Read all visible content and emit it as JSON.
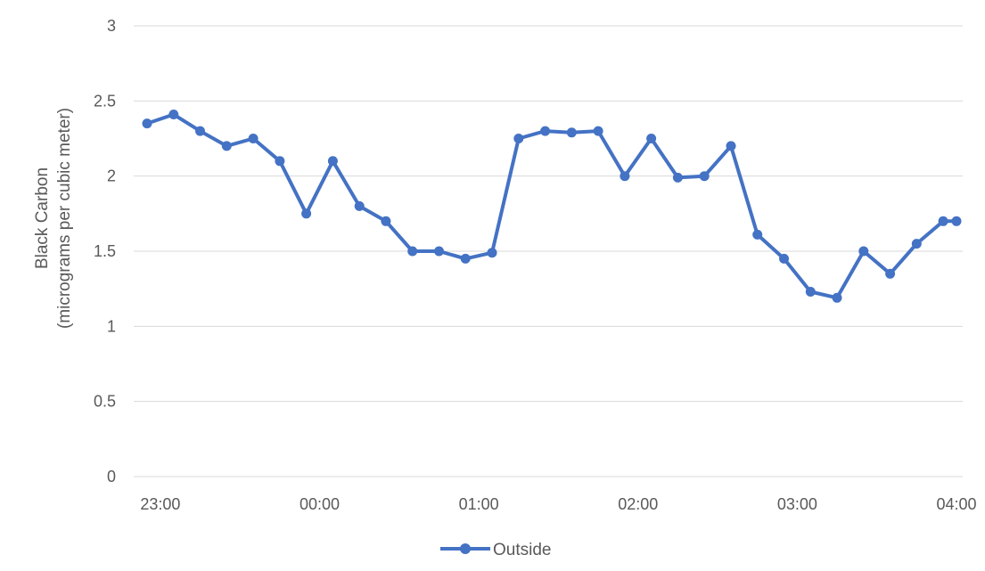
{
  "chart_data": {
    "type": "line",
    "ylabel_lines": [
      "Black Carbon",
      "(micrograms per cubic meter)"
    ],
    "xlabel": "",
    "ylim": [
      0,
      3
    ],
    "y_ticks": [
      "0",
      "0.5",
      "1",
      "1.5",
      "2",
      "2.5",
      "3"
    ],
    "x_range": [
      "22:55",
      "04:00"
    ],
    "x_ticks": [
      "23:00",
      "00:00",
      "01:00",
      "02:00",
      "03:00",
      "04:00"
    ],
    "grid": "horizontal",
    "legend": "bottom",
    "series": [
      {
        "name": "Outside",
        "color": "#4472c4",
        "x": [
          "22:55",
          "23:05",
          "23:15",
          "23:25",
          "23:35",
          "23:45",
          "23:55",
          "00:05",
          "00:15",
          "00:25",
          "00:35",
          "00:45",
          "00:55",
          "01:05",
          "01:15",
          "01:25",
          "01:35",
          "01:45",
          "01:55",
          "02:05",
          "02:15",
          "02:25",
          "02:35",
          "02:45",
          "02:55",
          "03:05",
          "03:15",
          "03:25",
          "03:35",
          "03:45",
          "03:55",
          "04:00"
        ],
        "y": [
          2.35,
          2.41,
          2.3,
          2.2,
          2.25,
          2.1,
          1.75,
          2.1,
          1.8,
          1.7,
          1.5,
          1.5,
          1.45,
          1.49,
          2.25,
          2.3,
          2.29,
          2.3,
          2.0,
          2.25,
          1.99,
          2.0,
          2.2,
          1.61,
          1.45,
          1.23,
          1.19,
          1.5,
          1.35,
          1.55,
          1.7,
          1.7
        ]
      }
    ]
  }
}
